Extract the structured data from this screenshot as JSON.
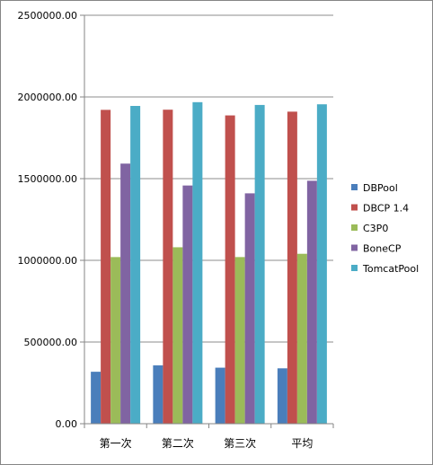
{
  "chart_data": {
    "type": "bar",
    "categories": [
      "第一次",
      "第二次",
      "第三次",
      "平均"
    ],
    "series": [
      {
        "name": "DBPool",
        "values": [
          318000,
          357000,
          343000,
          339000
        ],
        "color": "#4a7ebb"
      },
      {
        "name": "DBCP 1.4",
        "values": [
          1921000,
          1922000,
          1887000,
          1910000
        ],
        "color": "#c0504d"
      },
      {
        "name": "C3P0",
        "values": [
          1020000,
          1080000,
          1020000,
          1040000
        ],
        "color": "#9bbb59"
      },
      {
        "name": "BoneCP",
        "values": [
          1592000,
          1458000,
          1410000,
          1487000
        ],
        "color": "#8064a2"
      },
      {
        "name": "TomcatPool",
        "values": [
          1945000,
          1968000,
          1951000,
          1955000
        ],
        "color": "#4bacc6"
      }
    ],
    "y_ticks": [
      "0.00",
      "500000.00",
      "1000000.00",
      "1500000.00",
      "2000000.00",
      "2500000.00"
    ],
    "ylim": [
      0,
      2500000
    ],
    "title": "",
    "xlabel": "",
    "ylabel": "",
    "grid": true,
    "legend_position": "right"
  }
}
